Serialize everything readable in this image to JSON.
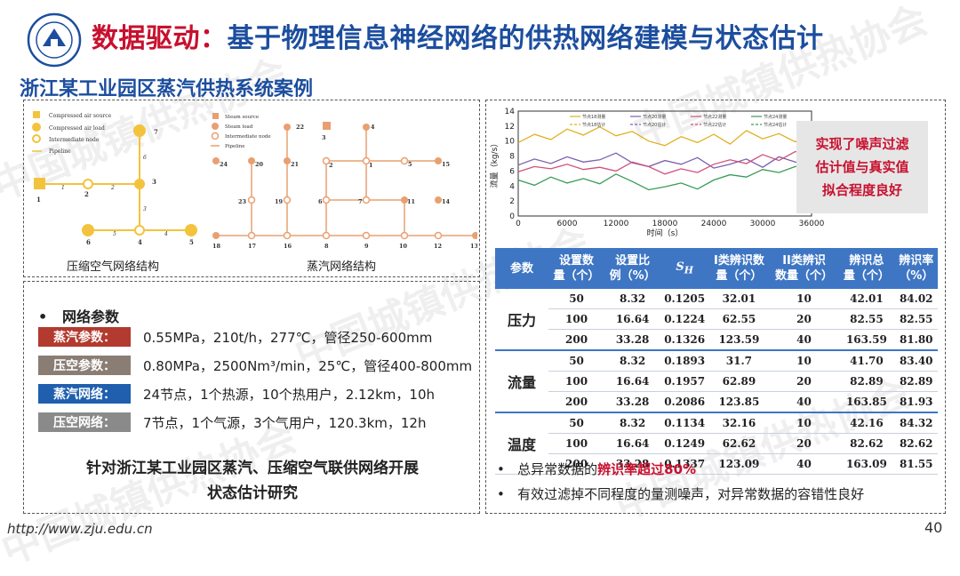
{
  "header": {
    "title_part1": "数据驱动：",
    "title_part2": "基于物理信息神经网络的供热网络建模与状态估计",
    "subtitle": "浙江某工业园区蒸汽供热系统案例",
    "logo_name": "Zhejiang University"
  },
  "networks": {
    "air": {
      "caption": "压缩空气网络结构",
      "legend": [
        "Compressed air source",
        "Compressed air load",
        "Intermediate node",
        "Pipeline"
      ],
      "node_labels": [
        "1",
        "2",
        "3",
        "4",
        "5",
        "6",
        "7"
      ],
      "pipe_labels": [
        "1",
        "2",
        "3",
        "4",
        "5",
        "6"
      ]
    },
    "steam": {
      "caption": "蒸汽网络结构",
      "legend": [
        "Steam source",
        "Steam load",
        "Intermediate node",
        "Pipeline"
      ],
      "node_labels": [
        "1",
        "2",
        "3",
        "4",
        "5",
        "6",
        "7",
        "8",
        "9",
        "10",
        "11",
        "12",
        "13",
        "14",
        "15",
        "16",
        "17",
        "18",
        "19",
        "20",
        "21",
        "22",
        "23",
        "24"
      ],
      "pipe_labels": [
        "17",
        "16",
        "15",
        "14",
        "13",
        "12",
        "11",
        "10",
        "9",
        "8",
        "7",
        "6",
        "5",
        "4",
        "3",
        "2",
        "1",
        "19",
        "20",
        "21",
        "22",
        "23"
      ]
    }
  },
  "params": {
    "heading": "网络参数",
    "rows": [
      {
        "tag": "蒸汽参数：",
        "color": "#b23a2e",
        "value": "0.55MPa，210t/h，277℃，管径250-600mm"
      },
      {
        "tag": "压空参数：",
        "color": "#8a7e74",
        "value": "0.80MPa，2500Nm³/min，25℃，管径400-800mm"
      },
      {
        "tag": "蒸汽网络：",
        "color": "#1f5fae",
        "value": "24节点，1个热源，10个热用户，2.12km，10h"
      },
      {
        "tag": "压空网络：",
        "color": "#8a8a8a",
        "value": "7节点，1个气源，3个气用户，120.3km，12h"
      }
    ],
    "conclusion_line1": "针对浙江某工业园区蒸汽、压缩空气联供网络开展",
    "conclusion_line2": "状态估计研究"
  },
  "chart_data": {
    "type": "line",
    "xlabel": "时间（s）",
    "ylabel": "流量（kg/s）",
    "x_ticks": [
      "0",
      "6000",
      "12000",
      "18000",
      "24000",
      "30000",
      "36000"
    ],
    "y_ticks": [
      "0",
      "2",
      "4",
      "6",
      "8",
      "10",
      "12",
      "14"
    ],
    "xlim": [
      0,
      36000
    ],
    "ylim": [
      0,
      14
    ],
    "legend": [
      "节点18测量",
      "节点20测量",
      "节点22测量",
      "节点24测量",
      "节点18估计",
      "节点20估计",
      "节点22估计",
      "节点24估计"
    ],
    "series": [
      {
        "name": "节点18测量",
        "color": "#e0b020",
        "x": [
          0,
          2000,
          4000,
          6000,
          8000,
          10000,
          12000,
          14000,
          16000,
          18000,
          20000,
          22000,
          24000,
          26000,
          28000,
          30000,
          32000,
          34000,
          36000
        ],
        "values": [
          9.8,
          10.9,
          10.2,
          11.6,
          10.8,
          11.9,
          10.7,
          11.3,
          10.0,
          9.4,
          10.6,
          9.8,
          10.9,
          9.6,
          11.4,
          10.3,
          11.0,
          9.9,
          11.5
        ]
      },
      {
        "name": "节点20测量",
        "color": "#7b5fb0",
        "x": [
          0,
          2000,
          4000,
          6000,
          8000,
          10000,
          12000,
          14000,
          16000,
          18000,
          20000,
          22000,
          24000,
          26000,
          28000,
          30000,
          32000,
          34000,
          36000
        ],
        "values": [
          6.8,
          7.6,
          7.0,
          7.9,
          7.2,
          7.5,
          8.4,
          7.1,
          6.6,
          7.4,
          6.9,
          7.8,
          6.4,
          6.9,
          7.6,
          6.5,
          7.9,
          7.2,
          6.8
        ]
      },
      {
        "name": "节点22测量",
        "color": "#d0507a",
        "x": [
          0,
          2000,
          4000,
          6000,
          8000,
          10000,
          12000,
          14000,
          16000,
          18000,
          20000,
          22000,
          24000,
          26000,
          28000,
          30000,
          32000,
          34000,
          36000
        ],
        "values": [
          5.9,
          6.6,
          6.3,
          6.9,
          6.2,
          6.5,
          6.0,
          7.2,
          6.6,
          5.6,
          6.3,
          5.8,
          6.9,
          7.5,
          7.0,
          8.2,
          7.4,
          8.6,
          8.2
        ]
      },
      {
        "name": "节点24测量",
        "color": "#3a9a5a",
        "x": [
          0,
          2000,
          4000,
          6000,
          8000,
          10000,
          12000,
          14000,
          16000,
          18000,
          20000,
          22000,
          24000,
          26000,
          28000,
          30000,
          32000,
          34000,
          36000
        ],
        "values": [
          4.8,
          4.1,
          5.2,
          4.4,
          5.0,
          4.3,
          5.6,
          4.6,
          3.5,
          3.9,
          4.4,
          3.6,
          4.8,
          5.5,
          5.2,
          6.2,
          5.8,
          6.6,
          6.9
        ]
      }
    ]
  },
  "note": {
    "lines": [
      "实现了噪声过滤",
      "估计值与真实值",
      "拟合程度良好"
    ]
  },
  "table": {
    "headers": [
      "参数",
      "设置数量（个）",
      "设置比例（%）",
      "S_H",
      "I类辨识数量（个）",
      "II类辨识数量（个）",
      "辨识总量（个）",
      "辨识率（%）"
    ],
    "header_lines": [
      [
        "参数"
      ],
      [
        "设置数",
        "量（个）"
      ],
      [
        "设置比",
        "例（%）"
      ],
      [
        "SH"
      ],
      [
        "I类辨识数",
        "量（个）"
      ],
      [
        "II类辨识",
        "数量（个）"
      ],
      [
        "辨识总",
        "量（个）"
      ],
      [
        "辨识率",
        "（%）"
      ]
    ],
    "groups": [
      {
        "name": "压力",
        "rows": [
          [
            "50",
            "8.32",
            "0.1205",
            "32.01",
            "10",
            "42.01",
            "84.02"
          ],
          [
            "100",
            "16.64",
            "0.1224",
            "62.55",
            "20",
            "82.55",
            "82.55"
          ],
          [
            "200",
            "33.28",
            "0.1326",
            "123.59",
            "40",
            "163.59",
            "81.80"
          ]
        ]
      },
      {
        "name": "流量",
        "rows": [
          [
            "50",
            "8.32",
            "0.1893",
            "31.7",
            "10",
            "41.70",
            "83.40"
          ],
          [
            "100",
            "16.64",
            "0.1957",
            "62.89",
            "20",
            "82.89",
            "82.89"
          ],
          [
            "200",
            "33.28",
            "0.2086",
            "123.85",
            "40",
            "163.85",
            "81.93"
          ]
        ]
      },
      {
        "name": "温度",
        "rows": [
          [
            "50",
            "8.32",
            "0.1134",
            "32.16",
            "10",
            "42.16",
            "84.32"
          ],
          [
            "100",
            "16.64",
            "0.1249",
            "62.62",
            "20",
            "82.62",
            "82.62"
          ],
          [
            "200",
            "33.28",
            "0.1337",
            "123.09",
            "40",
            "163.09",
            "81.55"
          ]
        ]
      }
    ]
  },
  "summary": {
    "line1_prefix": "总异常数据的",
    "line1_highlight": "辨识率超过80%",
    "line2": "有效过滤掉不同程度的量测噪声，对异常数据的容错性良好"
  },
  "footer": {
    "url": "http://www.zju.edu.cn",
    "page": "40"
  },
  "watermark": "中国城镇供热协会"
}
